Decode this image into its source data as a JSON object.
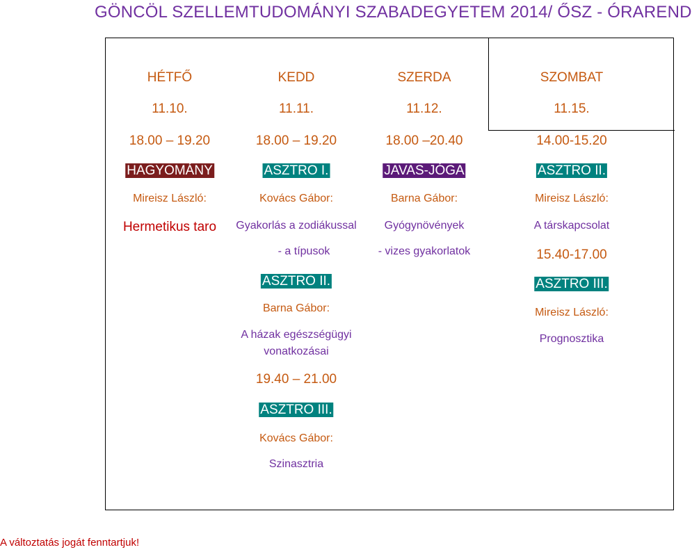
{
  "title": "GÖNCÖL SZELLEMTUDOMÁNYI SZABADEGYETEM 2014/ ŐSZ - ÓRAREND",
  "footer": "A változtatás jogát fenntartjuk!",
  "days": {
    "monday": {
      "name": "HÉTFŐ",
      "date": "11.10.",
      "time": "18.00 – 19.20",
      "course": "HAGYOMÁNY",
      "teacher": "Mireisz László:",
      "topic": "Hermetikus taro"
    },
    "tuesday": {
      "name": "KEDD",
      "date": "11.11.",
      "time": "18.00 – 19.20",
      "course": "ASZTRO I.",
      "teacher": "Kovács Gábor:",
      "topic_line1": "Gyakorlás a zodiákussal",
      "topic_line2": "- a típusok",
      "course2": "ASZTRO II.",
      "teacher2": "Barna Gábor:",
      "topic2_line1": "A házak egészségügyi",
      "topic2_line2": "vonatkozásai",
      "time2": "19.40 – 21.00",
      "course3": "ASZTRO III.",
      "teacher3": "Kovács Gábor:",
      "topic3": "Szinasztria"
    },
    "wednesday": {
      "name": "SZERDA",
      "date": "11.12.",
      "time": "18.00 –20.40",
      "course": "JAVAS-JÓGA",
      "teacher": "Barna Gábor:",
      "topic_line1": "Gyógynövények",
      "topic_line2": "- vizes gyakorlatok"
    },
    "saturday": {
      "name": "SZOMBAT",
      "date": "11.15.",
      "time": "14.00-15.20",
      "course": "ASZTRO II.",
      "teacher": "Mireisz László:",
      "topic": "A társkapcsolat",
      "time2": "15.40-17.00",
      "course2": "ASZTRO III.",
      "teacher2": "Mireisz László:",
      "topic2": "Prognosztika"
    }
  },
  "colors": {
    "title": "#7030a0",
    "orange": "#c55a11",
    "teal": "#00827f",
    "maroon": "#7b1d1d",
    "purple": "#5b1a78",
    "red": "#c00000"
  }
}
